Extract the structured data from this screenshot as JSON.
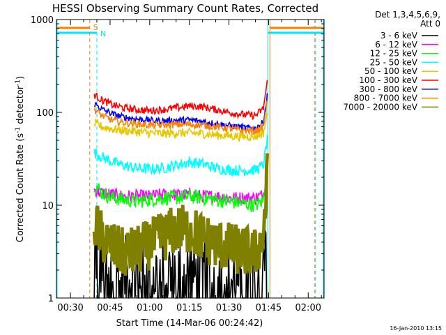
{
  "chart_data": {
    "type": "line",
    "title": "HESSI Observing Summary Count Rates, Corrected",
    "ylabel": "Corrected Count Rate (s",
    "ylabel_sup": "-1",
    "ylabel_mid": " detector",
    "ylabel_sup2": "-1",
    "ylabel_end": ")",
    "xlabel": "Start Time (14-Mar-06 00:24:42)",
    "footer": "16-Jan-2010 13:15",
    "y_scale": "log",
    "ylim": [
      1,
      1000
    ],
    "xlim_minutes": [
      24.7,
      126
    ],
    "x_ticks": [
      {
        "label": "00:30",
        "minute": 30
      },
      {
        "label": "00:45",
        "minute": 45
      },
      {
        "label": "01:00",
        "minute": 60
      },
      {
        "label": "01:15",
        "minute": 75
      },
      {
        "label": "01:30",
        "minute": 90
      },
      {
        "label": "01:45",
        "minute": 105
      },
      {
        "label": "02:00",
        "minute": 120
      }
    ],
    "y_ticks": [
      {
        "label": "1",
        "value": 1
      },
      {
        "label": "10",
        "value": 10
      },
      {
        "label": "100",
        "value": 100
      },
      {
        "label": "1000",
        "value": 1000
      }
    ],
    "legend": {
      "header1": "Det 1,3,4,5,6,9,",
      "header2": "Att 0",
      "position": "right"
    },
    "markers": [
      {
        "label": "S",
        "minute": 37.3,
        "color": "#ff8000"
      },
      {
        "label": "N",
        "minute": 40.0,
        "color": "#00e5ff"
      }
    ],
    "series": [
      {
        "name": "3 - 6 keV",
        "color": "#000000",
        "minute": [
          39,
          42,
          46,
          50,
          55,
          60,
          65,
          70,
          75,
          80,
          85,
          90,
          95,
          100,
          103,
          104.5
        ],
        "value": [
          3.5,
          2.4,
          1.8,
          1.7,
          1.8,
          1.9,
          1.7,
          1.8,
          1.8,
          1.7,
          1.8,
          1.6,
          1.7,
          1.8,
          3,
          12
        ]
      },
      {
        "name": "6 - 12 keV",
        "color": "#ff00ff",
        "minute": [
          39,
          42,
          46,
          50,
          55,
          60,
          65,
          70,
          75,
          80,
          85,
          90,
          95,
          100,
          103,
          104.5
        ],
        "value": [
          14.5,
          13.5,
          13,
          12.5,
          12.5,
          12.5,
          13,
          13,
          13,
          12.5,
          12.5,
          12,
          12,
          12,
          13,
          25
        ]
      },
      {
        "name": "12 - 25 keV",
        "color": "#00ff00",
        "minute": [
          39,
          42,
          46,
          50,
          55,
          60,
          65,
          70,
          75,
          80,
          85,
          90,
          95,
          100,
          103,
          104.5
        ],
        "value": [
          17,
          13.5,
          12,
          11.5,
          11,
          11.5,
          12,
          12,
          12.5,
          12,
          11.5,
          11,
          10.5,
          10,
          11,
          30
        ]
      },
      {
        "name": "25 - 50 keV",
        "color": "#00ffff",
        "minute": [
          39,
          42,
          46,
          50,
          55,
          60,
          65,
          70,
          75,
          80,
          85,
          90,
          95,
          100,
          103,
          104.5
        ],
        "value": [
          37,
          33,
          29,
          27,
          25,
          24.5,
          25,
          27,
          29,
          28,
          25,
          24,
          23.5,
          24,
          27,
          50
        ]
      },
      {
        "name": "50 - 100 keV",
        "color": "#e6c800",
        "minute": [
          39,
          42,
          46,
          50,
          55,
          60,
          65,
          70,
          75,
          80,
          85,
          90,
          95,
          100,
          103,
          104.5
        ],
        "value": [
          76,
          70,
          66,
          64,
          62,
          60,
          59,
          60,
          60,
          59,
          57,
          56,
          55,
          55,
          60,
          95
        ]
      },
      {
        "name": "100 - 300 keV",
        "color": "#ff0000",
        "minute": [
          39,
          42,
          46,
          50,
          55,
          60,
          65,
          70,
          75,
          80,
          85,
          90,
          95,
          100,
          103,
          104.5
        ],
        "value": [
          155,
          135,
          120,
          112,
          107,
          104,
          107,
          112,
          117,
          115,
          107,
          100,
          95,
          92,
          110,
          210
        ]
      },
      {
        "name": "300 - 800 keV",
        "color": "#0000ff",
        "minute": [
          39,
          42,
          46,
          50,
          55,
          60,
          65,
          70,
          75,
          80,
          85,
          90,
          95,
          100,
          103,
          104.5
        ],
        "value": [
          125,
          108,
          96,
          89,
          85,
          82,
          81,
          82,
          83,
          80,
          76,
          72,
          69,
          67,
          78,
          150
        ]
      },
      {
        "name": "800 - 7000 keV",
        "color": "#ff8000",
        "minute": [
          39,
          42,
          46,
          50,
          55,
          60,
          65,
          70,
          75,
          80,
          85,
          90,
          95,
          100,
          103,
          104.5
        ],
        "value": [
          108,
          92,
          82,
          78,
          75,
          73,
          73,
          74,
          74,
          73,
          70,
          67,
          64,
          63,
          70,
          130
        ]
      },
      {
        "name": "7000 - 20000 keV",
        "color": "#808000",
        "minute": [
          39,
          42,
          46,
          50,
          55,
          60,
          65,
          70,
          75,
          80,
          85,
          90,
          95,
          100,
          103,
          104.5
        ],
        "value": [
          6.5,
          4.5,
          3.5,
          3.0,
          3.2,
          3.8,
          4.5,
          5.5,
          5.5,
          4.5,
          3.8,
          3.5,
          3.2,
          3.0,
          4.5,
          20
        ]
      }
    ]
  }
}
